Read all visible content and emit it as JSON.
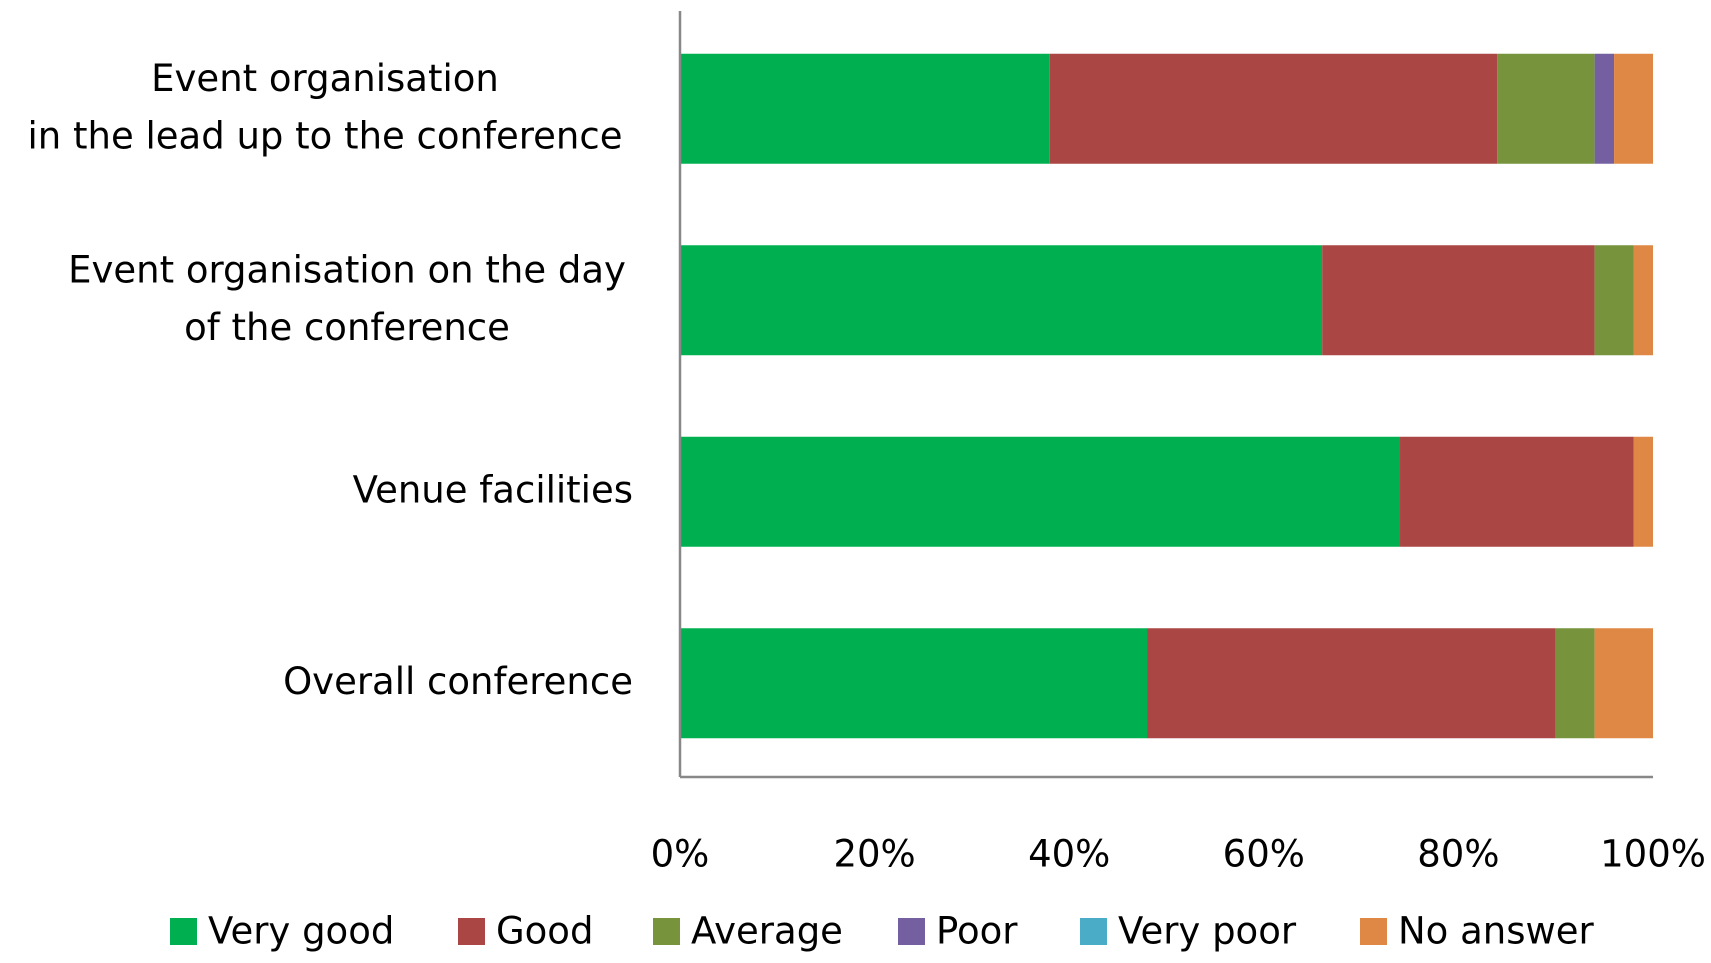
{
  "chart_data": {
    "type": "stacked-bar-horizontal",
    "categories": [
      "Event organisation\nin the lead up to the conference",
      "Event organisation on the day\nof the conference",
      "Venue facilities",
      "Overall conference"
    ],
    "series": [
      {
        "name": "Very good",
        "color": "#00b050",
        "values": [
          38,
          66,
          74,
          48
        ]
      },
      {
        "name": "Good",
        "color": "#aa4644",
        "values": [
          46,
          28,
          24,
          42
        ]
      },
      {
        "name": "Average",
        "color": "#77933c",
        "values": [
          10,
          4,
          0,
          4
        ]
      },
      {
        "name": "Poor",
        "color": "#7460a0",
        "values": [
          2,
          0,
          0,
          0
        ]
      },
      {
        "name": "Very poor",
        "color": "#4aacc6",
        "values": [
          0,
          0,
          0,
          0
        ]
      },
      {
        "name": "No answer",
        "color": "#df8744",
        "values": [
          4,
          2,
          2,
          6
        ]
      }
    ],
    "xlim": [
      0,
      100
    ],
    "xticks": [
      {
        "value": 0,
        "label": "0%"
      },
      {
        "value": 20,
        "label": "20%"
      },
      {
        "value": 40,
        "label": "40%"
      },
      {
        "value": 60,
        "label": "60%"
      },
      {
        "value": 80,
        "label": "80%"
      },
      {
        "value": 100,
        "label": "100%"
      }
    ],
    "legend": "bottom"
  }
}
